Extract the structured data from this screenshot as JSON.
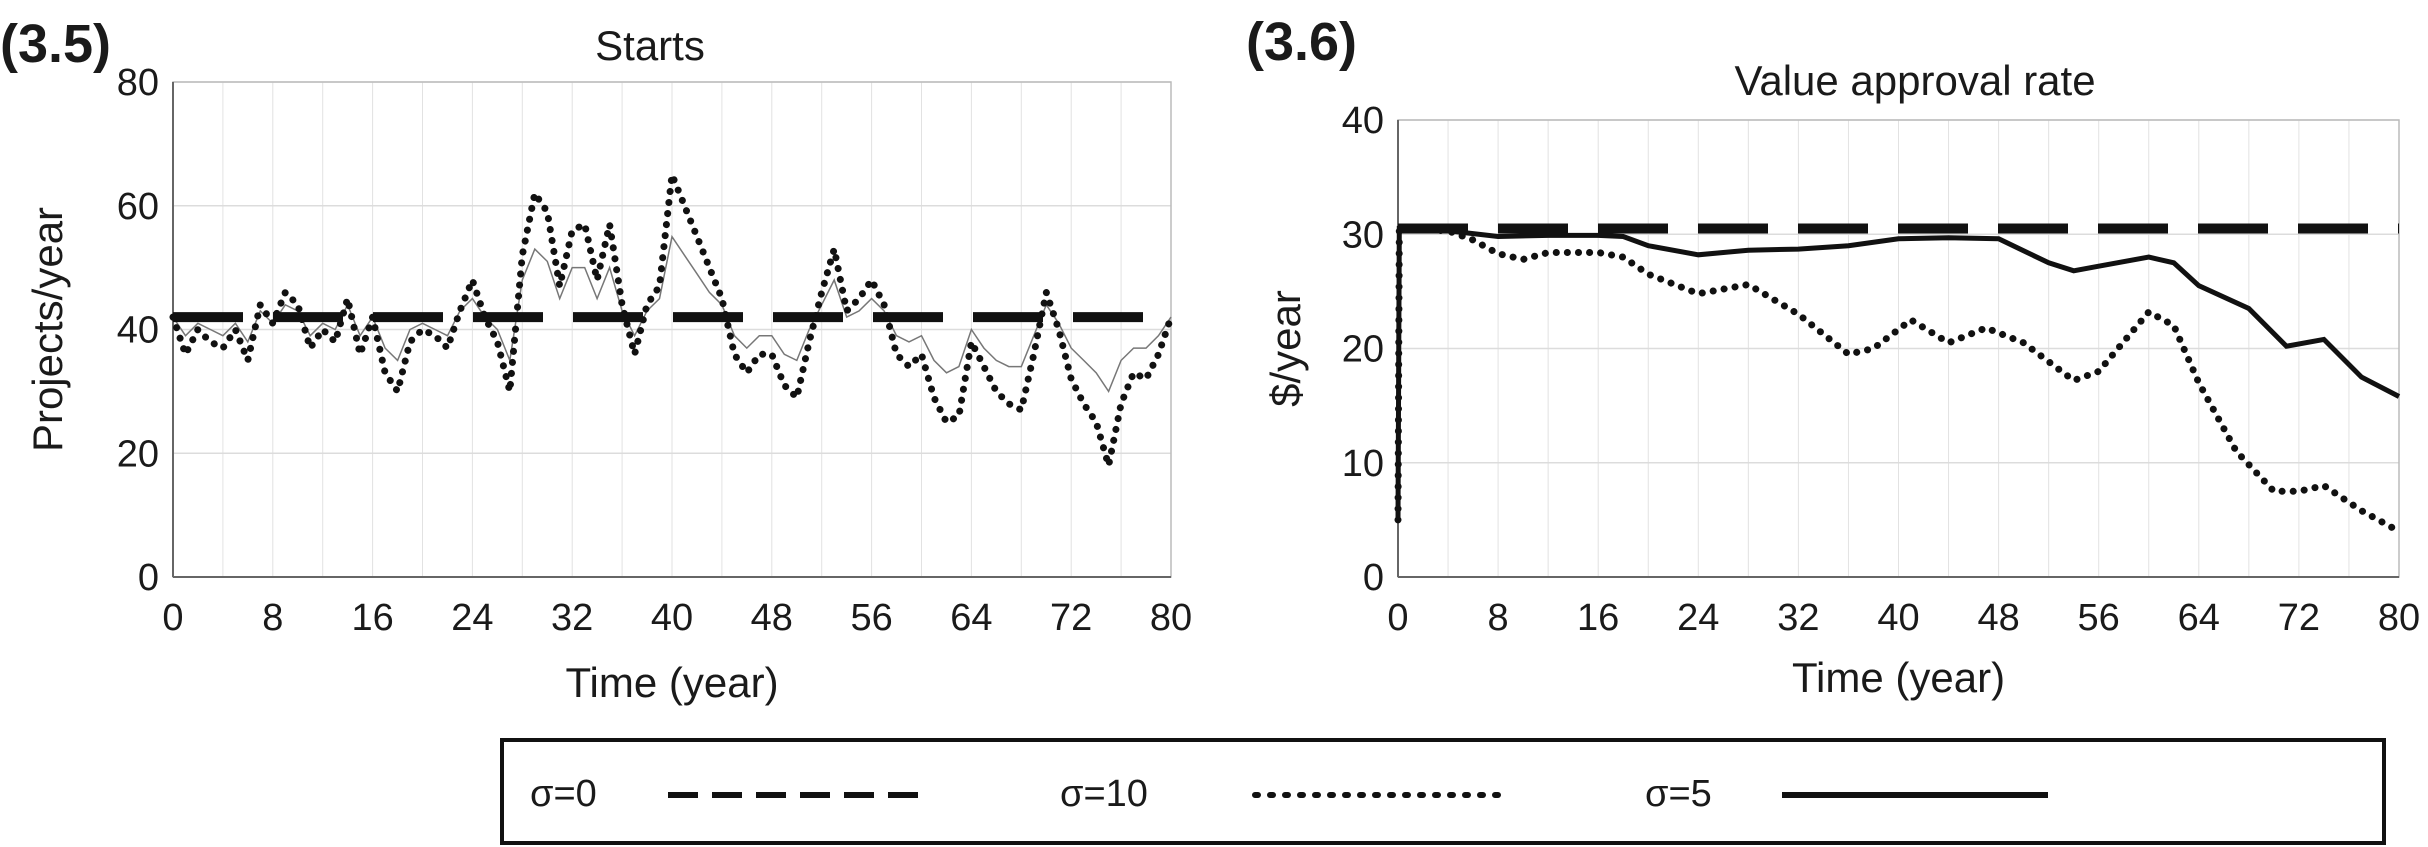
{
  "chart_data": [
    {
      "panel_label": "(3.5)",
      "type": "line",
      "title": "Starts",
      "xlabel": "Time (year)",
      "ylabel": "Projects/year",
      "xlim": [
        0,
        80
      ],
      "ylim": [
        0,
        80
      ],
      "xticks": [
        "0",
        "8",
        "16",
        "24",
        "32",
        "40",
        "48",
        "56",
        "64",
        "72",
        "80"
      ],
      "yticks": [
        "0",
        "20",
        "40",
        "60",
        "80"
      ],
      "grid": true,
      "series": [
        {
          "name": "σ=0",
          "style": "dashed",
          "x": [
            0,
            80
          ],
          "values": [
            42,
            42
          ]
        },
        {
          "name": "σ=10",
          "style": "dotted",
          "x": [
            0,
            1,
            2,
            3,
            4,
            5,
            6,
            7,
            8,
            9,
            10,
            11,
            12,
            13,
            14,
            15,
            16,
            17,
            18,
            19,
            20,
            21,
            22,
            23,
            24,
            25,
            26,
            27,
            28,
            29,
            30,
            31,
            32,
            33,
            34,
            35,
            36,
            37,
            38,
            39,
            40,
            41,
            42,
            43,
            44,
            45,
            46,
            47,
            48,
            49,
            50,
            51,
            52,
            53,
            54,
            55,
            56,
            57,
            58,
            59,
            60,
            61,
            62,
            63,
            64,
            65,
            66,
            67,
            68,
            69,
            70,
            71,
            72,
            73,
            74,
            75,
            76,
            77,
            78,
            79,
            80
          ],
          "values": [
            42,
            36,
            40,
            38,
            37,
            40,
            35,
            44,
            41,
            46,
            44,
            37,
            40,
            38,
            45,
            36,
            42,
            33,
            30,
            38,
            40,
            39,
            37,
            43,
            48,
            42,
            38,
            30,
            52,
            62,
            59,
            47,
            56,
            57,
            48,
            57,
            44,
            36,
            44,
            47,
            65,
            60,
            55,
            50,
            45,
            36,
            33,
            36,
            36,
            31,
            29,
            38,
            46,
            53,
            43,
            45,
            48,
            44,
            36,
            34,
            36,
            29,
            25,
            26,
            38,
            34,
            30,
            28,
            27,
            36,
            46,
            40,
            32,
            28,
            25,
            18,
            28,
            33,
            32,
            36,
            42
          ]
        },
        {
          "name": "σ=5",
          "style": "solid-thin",
          "x": [
            0,
            1,
            2,
            3,
            4,
            5,
            6,
            7,
            8,
            9,
            10,
            11,
            12,
            13,
            14,
            15,
            16,
            17,
            18,
            19,
            20,
            21,
            22,
            23,
            24,
            25,
            26,
            27,
            28,
            29,
            30,
            31,
            32,
            33,
            34,
            35,
            36,
            37,
            38,
            39,
            40,
            41,
            42,
            43,
            44,
            45,
            46,
            47,
            48,
            49,
            50,
            51,
            52,
            53,
            54,
            55,
            56,
            57,
            58,
            59,
            60,
            61,
            62,
            63,
            64,
            65,
            66,
            67,
            68,
            69,
            70,
            71,
            72,
            73,
            74,
            75,
            76,
            77,
            78,
            79,
            80
          ],
          "values": [
            42,
            39,
            41,
            40,
            39,
            41,
            38,
            43,
            41,
            44,
            43,
            39,
            41,
            40,
            44,
            39,
            42,
            37,
            35,
            40,
            41,
            40,
            39,
            43,
            45,
            42,
            40,
            35,
            48,
            53,
            51,
            45,
            50,
            50,
            45,
            50,
            43,
            39,
            43,
            45,
            55,
            52,
            49,
            46,
            44,
            39,
            37,
            39,
            39,
            36,
            35,
            40,
            44,
            48,
            42,
            43,
            45,
            43,
            39,
            38,
            39,
            35,
            33,
            34,
            40,
            37,
            35,
            34,
            34,
            39,
            44,
            41,
            37,
            35,
            33,
            30,
            35,
            37,
            37,
            39,
            42
          ]
        }
      ]
    },
    {
      "panel_label": "(3.6)",
      "type": "line",
      "title": "Value approval rate",
      "xlabel": "Time (year)",
      "ylabel": "$/year",
      "xlim": [
        0,
        80
      ],
      "ylim": [
        0,
        40
      ],
      "xticks": [
        "0",
        "8",
        "16",
        "24",
        "32",
        "40",
        "48",
        "56",
        "64",
        "72",
        "80"
      ],
      "yticks": [
        "0",
        "10",
        "20",
        "30",
        "40"
      ],
      "grid": true,
      "series": [
        {
          "name": "σ=0",
          "style": "dashed",
          "x": [
            0,
            80
          ],
          "values": [
            30.5,
            30.5
          ]
        },
        {
          "name": "σ=10",
          "style": "dotted",
          "x": [
            0,
            0.1,
            4,
            6,
            8,
            10,
            12,
            16,
            18,
            20,
            24,
            28,
            32,
            36,
            38,
            41,
            44,
            47,
            50,
            54,
            56,
            60,
            62,
            64,
            67,
            70,
            72,
            74,
            77,
            80
          ],
          "values": [
            5,
            30.5,
            30.3,
            29.5,
            28.3,
            27.8,
            28.4,
            28.4,
            28,
            26.5,
            24.8,
            25.6,
            23,
            19.5,
            20,
            22.5,
            20.5,
            21.8,
            20.5,
            17.2,
            18,
            23.2,
            22,
            17,
            11,
            7.5,
            7.5,
            8,
            5.8,
            4
          ]
        },
        {
          "name": "σ=5",
          "style": "solid",
          "x": [
            0,
            0.1,
            4,
            8,
            12,
            16,
            18,
            20,
            24,
            28,
            32,
            36,
            40,
            44,
            48,
            52,
            54,
            56,
            60,
            62,
            64,
            68,
            71,
            74,
            77,
            80
          ],
          "values": [
            5,
            30.5,
            30.3,
            29.8,
            29.9,
            29.9,
            29.8,
            29,
            28.2,
            28.6,
            28.7,
            29,
            29.6,
            29.7,
            29.6,
            27.5,
            26.8,
            27.2,
            28,
            27.5,
            25.5,
            23.5,
            20.2,
            20.8,
            17.5,
            15.8
          ]
        }
      ]
    }
  ],
  "legend": {
    "placement": "bottom-center",
    "items": [
      {
        "label": "σ=0",
        "style": "dashed"
      },
      {
        "label": "σ=10",
        "style": "dotted"
      },
      {
        "label": "σ=5",
        "style": "solid"
      }
    ]
  }
}
